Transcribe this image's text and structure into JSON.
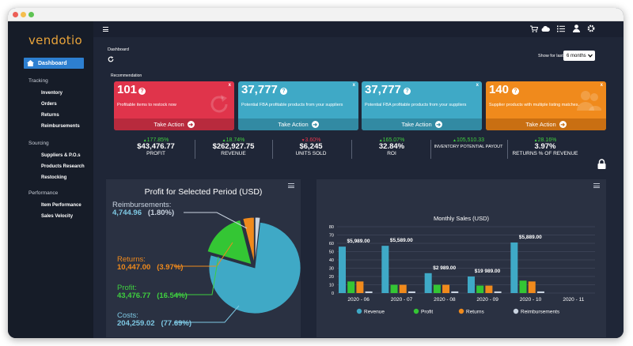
{
  "window": {
    "dots": [
      "#ec5f57",
      "#f5be4f",
      "#5fc454"
    ]
  },
  "sidebar": {
    "logo": "vendotio",
    "active": "Dashboard",
    "sections": [
      {
        "title": "Tracking",
        "items": [
          "Inventory",
          "Orders",
          "Returns",
          "Reimbursements"
        ]
      },
      {
        "title": "Sourcing",
        "items": [
          "Suppliers & P.O.s",
          "Products Research",
          "Restocking"
        ]
      },
      {
        "title": "Performance",
        "items": [
          "Item Performance",
          "Sales Velocity"
        ]
      }
    ]
  },
  "header": {
    "breadcrumb": "Dashboard",
    "recommendation_label": "Recommendation",
    "show_for_last_label": "Show for last",
    "period_selected": "6 months"
  },
  "cards": [
    {
      "value": "101",
      "desc": "Profitable items to restock now",
      "action": "Take Action",
      "color": "#e0344b",
      "footer": "#b82a3d"
    },
    {
      "value": "37,777",
      "desc": "Potential FBA profitable products from your suppliers",
      "action": "Take Action",
      "color": "#3fa9c6",
      "footer": "#328aa3"
    },
    {
      "value": "37,777",
      "desc": "Potential FBA profitable products from your suppliers",
      "action": "Take Action",
      "color": "#3fa9c6",
      "footer": "#328aa3"
    },
    {
      "value": "140",
      "desc": "Supplier products with multiple listing matches.",
      "action": "Take Action",
      "color": "#f08a1c",
      "footer": "#c96f12"
    }
  ],
  "stats": [
    {
      "change": "177.85%",
      "dir": "up",
      "value": "$43,476.77",
      "label": "PROFIT"
    },
    {
      "change": "18.74%",
      "dir": "up",
      "value": "$262,927.75",
      "label": "REVENUE"
    },
    {
      "change": "3.60%",
      "dir": "down",
      "value": "$6,245",
      "label": "UNITS SOLD"
    },
    {
      "change": "165.07%",
      "dir": "up",
      "value": "32.84%",
      "label": "ROI"
    },
    {
      "change": "105,510.33",
      "dir": "up",
      "value": "",
      "label": "INVENTORY POTENTIAL PAYOUT"
    },
    {
      "change": "28.16%",
      "dir": "up",
      "value": "3.97%",
      "label": "RETURNS % OF REVENUE"
    }
  ],
  "profit_panel": {
    "title": "Profit for Selected Period (USD)",
    "labels": [
      {
        "name": "Reimbursements:",
        "amount": "4,744.96",
        "pct": "(1.80%)",
        "color": "#c9d3e0"
      },
      {
        "name": "Returns:",
        "amount": "10,447.00",
        "pct": "(3.97%)",
        "color": "#f08a1c"
      },
      {
        "name": "Profit:",
        "amount": "43,476.77",
        "pct": "(16.54%)",
        "color": "#3fcf3f"
      },
      {
        "name": "Costs:",
        "amount": "204,259.02",
        "pct": "(77.69%)",
        "color": "#7ec8e3"
      }
    ]
  },
  "chart_data": [
    {
      "type": "pie",
      "title": "Profit for Selected Period (USD)",
      "categories": [
        "Costs",
        "Profit",
        "Returns",
        "Reimbursements"
      ],
      "values": [
        204259.02,
        43476.77,
        10447.0,
        4744.96
      ],
      "colors": [
        "#3fa9c6",
        "#34c634",
        "#f08a1c",
        "#c9d3e0"
      ]
    },
    {
      "type": "bar",
      "title": "Monthly Sales (USD)",
      "categories": [
        "2020 - 06",
        "2020 - 07",
        "2020 - 08",
        "2020 - 09",
        "2020 - 10",
        "2020 - 11"
      ],
      "ylim": [
        0,
        80
      ],
      "yticks": [
        0,
        10,
        20,
        30,
        40,
        50,
        60,
        70,
        80
      ],
      "series": [
        {
          "name": "Revenue",
          "color": "#3fa9c6",
          "values": [
            56,
            57,
            24,
            20,
            61,
            0
          ]
        },
        {
          "name": "Profit",
          "color": "#34c634",
          "values": [
            14,
            10,
            10,
            9,
            15,
            0
          ]
        },
        {
          "name": "Returns",
          "color": "#f08a1c",
          "values": [
            14,
            10,
            10,
            9,
            14,
            0
          ]
        },
        {
          "name": "Reimbursements",
          "color": "#c9d3e0",
          "values": [
            2,
            2,
            2,
            2,
            2,
            0
          ]
        }
      ],
      "data_labels": [
        "$5,989.00",
        "$5,589.00",
        "$2 989.00",
        "$19 989.00",
        "$5,889.00",
        ""
      ],
      "legend": "bottom"
    }
  ]
}
